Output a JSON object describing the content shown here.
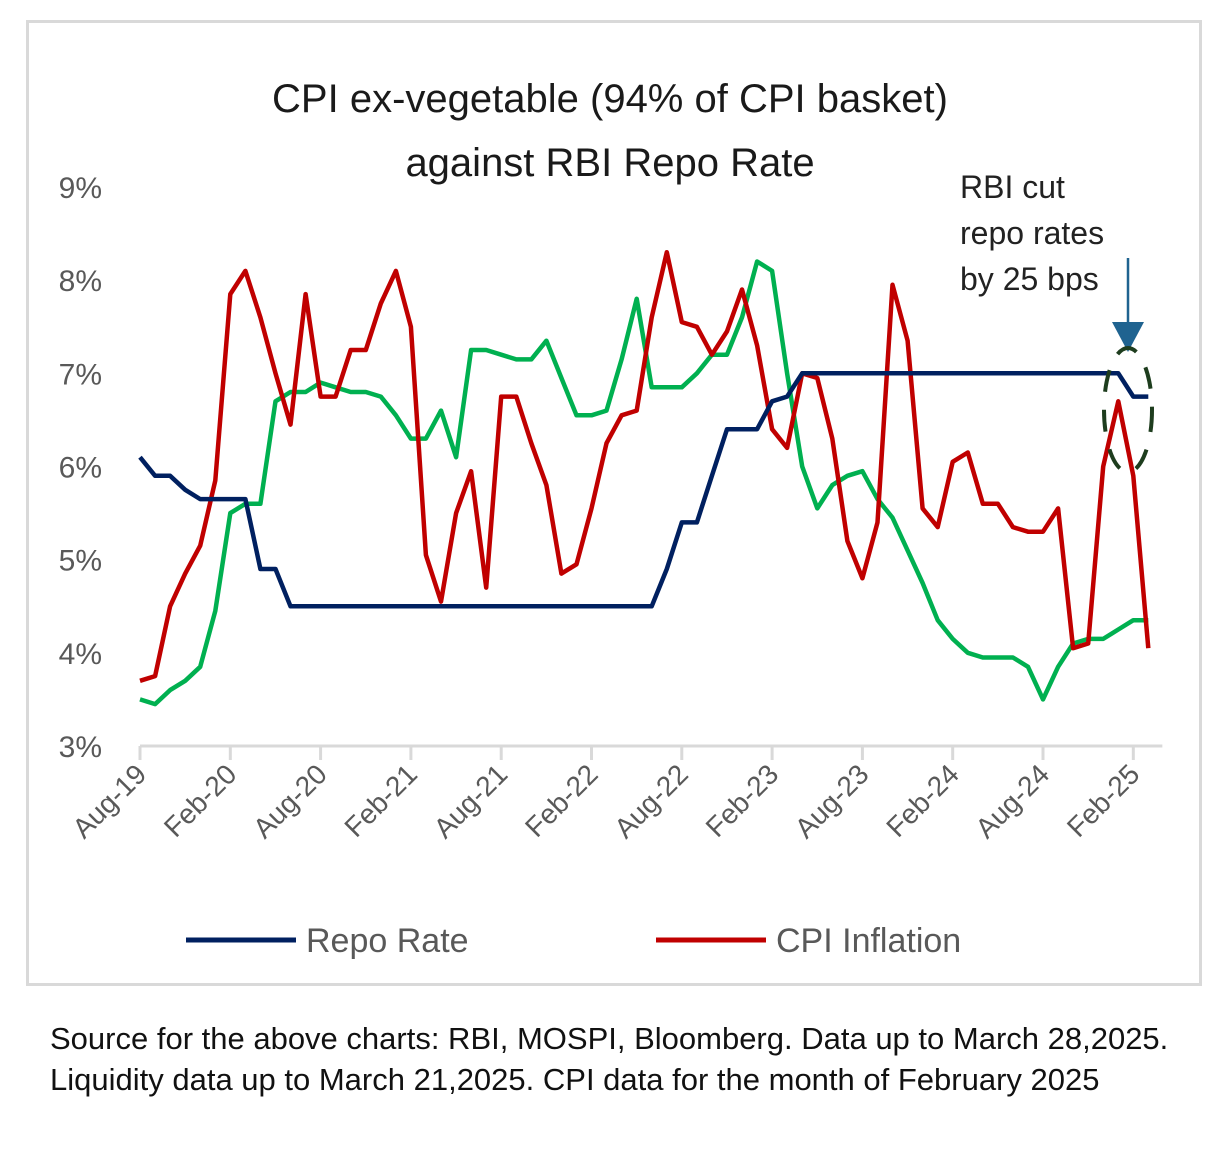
{
  "chart_data": {
    "type": "line",
    "title": "CPI ex-vegetable (94% of CPI basket) against RBI Repo Rate",
    "title_lines": [
      "CPI ex-vegetable (94% of CPI basket)",
      "against RBI Repo Rate"
    ],
    "xlabel": "",
    "ylabel": "",
    "ylim": [
      3,
      9
    ],
    "yticks": [
      3,
      4,
      5,
      6,
      7,
      8,
      9
    ],
    "ytick_labels": [
      "3%",
      "4%",
      "5%",
      "6%",
      "7%",
      "8%",
      "9%"
    ],
    "xtick_labels": [
      "Aug-19",
      "Feb-20",
      "Aug-20",
      "Feb-21",
      "Aug-21",
      "Feb-22",
      "Aug-22",
      "Feb-23",
      "Aug-23",
      "Feb-24",
      "Aug-24",
      "Feb-25"
    ],
    "xtick_month_index": [
      0,
      6,
      12,
      18,
      24,
      30,
      36,
      42,
      48,
      54,
      60,
      66
    ],
    "x_start": "Aug-19",
    "n_months": 68,
    "grid": false,
    "legend_position": "bottom",
    "series": [
      {
        "name": "Repo Rate",
        "color": "#002060",
        "in_legend": true,
        "values": [
          6.1,
          5.9,
          5.9,
          5.75,
          5.65,
          5.65,
          5.65,
          5.65,
          4.9,
          4.9,
          4.5,
          4.5,
          4.5,
          4.5,
          4.5,
          4.5,
          4.5,
          4.5,
          4.5,
          4.5,
          4.5,
          4.5,
          4.5,
          4.5,
          4.5,
          4.5,
          4.5,
          4.5,
          4.5,
          4.5,
          4.5,
          4.5,
          4.5,
          4.5,
          4.5,
          4.9,
          5.4,
          5.4,
          5.9,
          6.4,
          6.4,
          6.4,
          6.7,
          6.75,
          7.0,
          7.0,
          7.0,
          7.0,
          7.0,
          7.0,
          7.0,
          7.0,
          7.0,
          7.0,
          7.0,
          7.0,
          7.0,
          7.0,
          7.0,
          7.0,
          7.0,
          7.0,
          7.0,
          7.0,
          7.0,
          7.0,
          6.75,
          6.75
        ]
      },
      {
        "name": "CPI Inflation",
        "color": "#c00000",
        "in_legend": true,
        "values": [
          3.7,
          3.75,
          4.5,
          4.85,
          5.15,
          5.85,
          7.85,
          8.1,
          7.6,
          7.0,
          6.45,
          7.85,
          6.75,
          6.75,
          7.25,
          7.25,
          7.75,
          8.1,
          7.5,
          5.05,
          4.55,
          5.5,
          5.95,
          4.7,
          6.75,
          6.75,
          6.25,
          5.8,
          4.85,
          4.95,
          5.55,
          6.25,
          6.55,
          6.6,
          7.6,
          8.3,
          7.55,
          7.5,
          7.2,
          7.45,
          7.9,
          7.3,
          6.4,
          6.2,
          7.0,
          6.95,
          6.3,
          5.2,
          4.8,
          5.4,
          7.95,
          7.35,
          5.55,
          5.35,
          6.05,
          6.15,
          5.6,
          5.6,
          5.35,
          5.3,
          5.3,
          5.55,
          4.05,
          4.1,
          6.0,
          6.7,
          5.9,
          4.05
        ]
      },
      {
        "name": "CPI ex-vegetable",
        "color": "#00b050",
        "in_legend": false,
        "values": [
          3.5,
          3.45,
          3.6,
          3.7,
          3.85,
          4.45,
          5.5,
          5.6,
          5.6,
          6.7,
          6.8,
          6.8,
          6.9,
          6.85,
          6.8,
          6.8,
          6.75,
          6.55,
          6.3,
          6.3,
          6.6,
          6.1,
          7.25,
          7.25,
          7.2,
          7.15,
          7.15,
          7.35,
          6.95,
          6.55,
          6.55,
          6.6,
          7.15,
          7.8,
          6.85,
          6.85,
          6.85,
          7.0,
          7.2,
          7.2,
          7.6,
          8.2,
          8.1,
          7.0,
          6.0,
          5.55,
          5.8,
          5.9,
          5.95,
          5.65,
          5.45,
          5.1,
          4.75,
          4.35,
          4.15,
          4.0,
          3.95,
          3.95,
          3.95,
          3.85,
          3.5,
          3.85,
          4.1,
          4.15,
          4.15,
          4.25,
          4.35,
          4.35
        ]
      }
    ],
    "annotation": {
      "text_lines": [
        "RBI cut",
        "repo rates",
        "by 25 bps"
      ],
      "arrow_color": "#1f6390",
      "ellipse_color": "#1e3d1e"
    }
  },
  "footer": {
    "source_text": "Source for the above charts: RBI, MOSPI, Bloomberg. Data up to March 28,2025. Liquidity data up to March 21,2025. CPI data for the month of February 2025"
  }
}
